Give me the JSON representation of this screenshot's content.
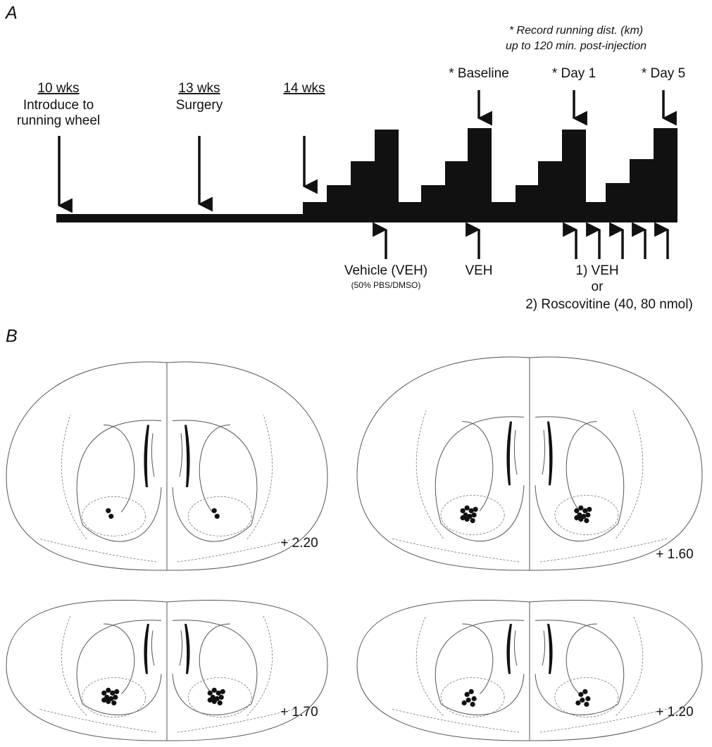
{
  "panel_a": {
    "label": "A",
    "note": [
      "* Record running dist. (km)",
      "up to 120 min. post-injection"
    ],
    "timepoints": [
      {
        "title": "10 wks",
        "text": [
          "Introduce to",
          "running wheel"
        ]
      },
      {
        "title": "13 wks",
        "text": [
          "Surgery"
        ]
      },
      {
        "title": "14 wks"
      }
    ],
    "records": [
      "* Baseline",
      "* Day 1",
      "* Day 5"
    ],
    "injections": [
      {
        "text": [
          "Vehicle (VEH)"
        ],
        "sub": "(50% PBS/DMSO)"
      },
      {
        "text": [
          "VEH"
        ]
      },
      {
        "text": [
          "1) VEH",
          "or",
          "2) Roscovitine (40, 80 nmol)"
        ]
      }
    ]
  },
  "panel_b": {
    "label": "B",
    "sections": [
      "+ 2.20",
      "+ 1.60",
      "+ 1.70",
      "+ 1.20"
    ]
  }
}
